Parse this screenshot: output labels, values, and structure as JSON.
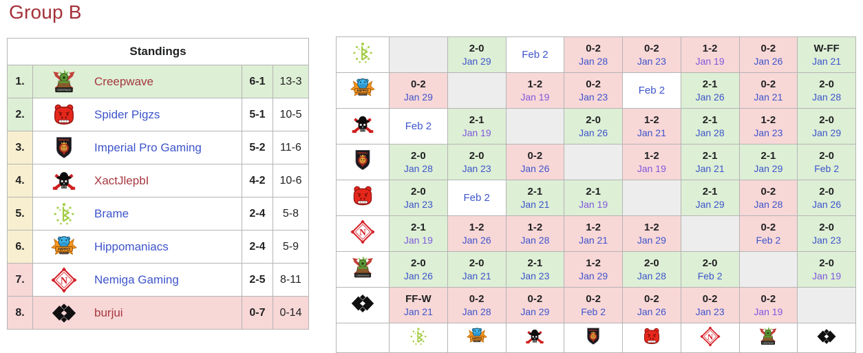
{
  "page": {
    "title": "Group B"
  },
  "colors": {
    "title": "#a43139",
    "link-blue": "#3d54cb",
    "link-red": "#a5383f",
    "link-purple": "#7e58dd",
    "win-bg": "#ddefd5",
    "loss-bg": "#f8d7d7",
    "self-bg": "#ededed",
    "mid-bg": "#f8efd0"
  },
  "standings": {
    "header": "Standings",
    "rows": [
      {
        "rank": "1.",
        "team": "Creepwave",
        "icon": "creepwave",
        "series": "6-1",
        "games": "13-3",
        "link_color": "red",
        "row_bg": "win",
        "rank_bg": "win"
      },
      {
        "rank": "2.",
        "team": "Spider Pigzs",
        "icon": "spiderpigzs",
        "series": "5-1",
        "games": "10-5",
        "link_color": "blue",
        "row_bg": "none",
        "rank_bg": "win"
      },
      {
        "rank": "3.",
        "team": "Imperial Pro Gaming",
        "icon": "imperial",
        "series": "5-2",
        "games": "11-6",
        "link_color": "blue",
        "row_bg": "none",
        "rank_bg": "mid"
      },
      {
        "rank": "4.",
        "team": "XactJlepbI",
        "icon": "xactjlepbi",
        "series": "4-2",
        "games": "10-6",
        "link_color": "red",
        "row_bg": "none",
        "rank_bg": "mid"
      },
      {
        "rank": "5.",
        "team": "Brame",
        "icon": "brame",
        "series": "2-4",
        "games": "5-8",
        "link_color": "blue",
        "row_bg": "none",
        "rank_bg": "mid"
      },
      {
        "rank": "6.",
        "team": "Hippomaniacs",
        "icon": "hippomaniacs",
        "series": "2-4",
        "games": "5-9",
        "link_color": "blue",
        "row_bg": "none",
        "rank_bg": "mid"
      },
      {
        "rank": "7.",
        "team": "Nemiga Gaming",
        "icon": "nemiga",
        "series": "2-5",
        "games": "8-11",
        "link_color": "blue",
        "row_bg": "none",
        "rank_bg": "loss"
      },
      {
        "rank": "8.",
        "team": "burjui",
        "icon": "burjui",
        "series": "0-7",
        "games": "0-14",
        "link_color": "red",
        "row_bg": "loss",
        "rank_bg": "loss"
      }
    ]
  },
  "crosstable": {
    "column_order": [
      "brame",
      "hippomaniacs",
      "xactjlepbi",
      "imperial",
      "spiderpigzs",
      "nemiga",
      "creepwave",
      "burjui"
    ],
    "rows": [
      {
        "team": "Brame",
        "icon": "brame",
        "cells": [
          {
            "result": "self"
          },
          {
            "result": "win",
            "score": "2-0",
            "date": "Jan 29"
          },
          {
            "result": "upcoming",
            "date": "Feb 2"
          },
          {
            "result": "loss",
            "score": "0-2",
            "date": "Jan 28"
          },
          {
            "result": "loss",
            "score": "0-2",
            "date": "Jan 23"
          },
          {
            "result": "loss",
            "score": "1-2",
            "date": "Jan 19",
            "visited": true
          },
          {
            "result": "loss",
            "score": "0-2",
            "date": "Jan 26"
          },
          {
            "result": "win",
            "score": "W-FF",
            "date": "Jan 21"
          }
        ]
      },
      {
        "team": "Hippomaniacs",
        "icon": "hippomaniacs",
        "cells": [
          {
            "result": "loss",
            "score": "0-2",
            "date": "Jan 29"
          },
          {
            "result": "self"
          },
          {
            "result": "loss",
            "score": "1-2",
            "date": "Jan 19",
            "visited": true
          },
          {
            "result": "loss",
            "score": "0-2",
            "date": "Jan 23"
          },
          {
            "result": "upcoming",
            "date": "Feb 2"
          },
          {
            "result": "win",
            "score": "2-1",
            "date": "Jan 26"
          },
          {
            "result": "loss",
            "score": "0-2",
            "date": "Jan 21"
          },
          {
            "result": "win",
            "score": "2-0",
            "date": "Jan 28"
          }
        ]
      },
      {
        "team": "XactJlepbI",
        "icon": "xactjlepbi",
        "cells": [
          {
            "result": "upcoming",
            "date": "Feb 2"
          },
          {
            "result": "win",
            "score": "2-1",
            "date": "Jan 19",
            "visited": true
          },
          {
            "result": "self"
          },
          {
            "result": "win",
            "score": "2-0",
            "date": "Jan 26"
          },
          {
            "result": "loss",
            "score": "1-2",
            "date": "Jan 21"
          },
          {
            "result": "win",
            "score": "2-1",
            "date": "Jan 28"
          },
          {
            "result": "loss",
            "score": "1-2",
            "date": "Jan 23"
          },
          {
            "result": "win",
            "score": "2-0",
            "date": "Jan 29"
          }
        ]
      },
      {
        "team": "Imperial Pro Gaming",
        "icon": "imperial",
        "cells": [
          {
            "result": "win",
            "score": "2-0",
            "date": "Jan 28"
          },
          {
            "result": "win",
            "score": "2-0",
            "date": "Jan 23"
          },
          {
            "result": "loss",
            "score": "0-2",
            "date": "Jan 26"
          },
          {
            "result": "self"
          },
          {
            "result": "loss",
            "score": "1-2",
            "date": "Jan 19",
            "visited": true
          },
          {
            "result": "win",
            "score": "2-1",
            "date": "Jan 21"
          },
          {
            "result": "win",
            "score": "2-1",
            "date": "Jan 29"
          },
          {
            "result": "win",
            "score": "2-0",
            "date": "Feb 2"
          }
        ]
      },
      {
        "team": "Spider Pigzs",
        "icon": "spiderpigzs",
        "cells": [
          {
            "result": "win",
            "score": "2-0",
            "date": "Jan 23"
          },
          {
            "result": "upcoming",
            "date": "Feb 2"
          },
          {
            "result": "win",
            "score": "2-1",
            "date": "Jan 21"
          },
          {
            "result": "win",
            "score": "2-1",
            "date": "Jan 19",
            "visited": true
          },
          {
            "result": "self"
          },
          {
            "result": "win",
            "score": "2-1",
            "date": "Jan 29"
          },
          {
            "result": "loss",
            "score": "0-2",
            "date": "Jan 28"
          },
          {
            "result": "win",
            "score": "2-0",
            "date": "Jan 26"
          }
        ]
      },
      {
        "team": "Nemiga Gaming",
        "icon": "nemiga",
        "cells": [
          {
            "result": "win",
            "score": "2-1",
            "date": "Jan 19",
            "visited": true
          },
          {
            "result": "loss",
            "score": "1-2",
            "date": "Jan 26"
          },
          {
            "result": "loss",
            "score": "1-2",
            "date": "Jan 28"
          },
          {
            "result": "loss",
            "score": "1-2",
            "date": "Jan 21"
          },
          {
            "result": "loss",
            "score": "1-2",
            "date": "Jan 29"
          },
          {
            "result": "self"
          },
          {
            "result": "loss",
            "score": "0-2",
            "date": "Feb 2"
          },
          {
            "result": "win",
            "score": "2-0",
            "date": "Jan 23"
          }
        ]
      },
      {
        "team": "Creepwave",
        "icon": "creepwave",
        "cells": [
          {
            "result": "win",
            "score": "2-0",
            "date": "Jan 26"
          },
          {
            "result": "win",
            "score": "2-0",
            "date": "Jan 21"
          },
          {
            "result": "win",
            "score": "2-1",
            "date": "Jan 23"
          },
          {
            "result": "loss",
            "score": "1-2",
            "date": "Jan 29"
          },
          {
            "result": "win",
            "score": "2-0",
            "date": "Jan 28"
          },
          {
            "result": "win",
            "score": "2-0",
            "date": "Feb 2"
          },
          {
            "result": "self"
          },
          {
            "result": "win",
            "score": "2-0",
            "date": "Jan 19",
            "visited": true
          }
        ]
      },
      {
        "team": "burjui",
        "icon": "burjui",
        "cells": [
          {
            "result": "loss",
            "score": "FF-W",
            "date": "Jan 21"
          },
          {
            "result": "loss",
            "score": "0-2",
            "date": "Jan 28"
          },
          {
            "result": "loss",
            "score": "0-2",
            "date": "Jan 29"
          },
          {
            "result": "loss",
            "score": "0-2",
            "date": "Feb 2"
          },
          {
            "result": "loss",
            "score": "0-2",
            "date": "Jan 26"
          },
          {
            "result": "loss",
            "score": "0-2",
            "date": "Jan 23"
          },
          {
            "result": "loss",
            "score": "0-2",
            "date": "Jan 19",
            "visited": true
          },
          {
            "result": "self"
          }
        ]
      }
    ]
  }
}
